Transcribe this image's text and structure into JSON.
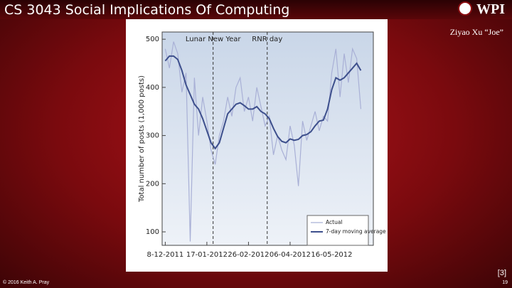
{
  "slide": {
    "title": "CS 3043 Social Implications Of Computing",
    "logo": "WPI",
    "author": "Ziyao Xu “Joe”",
    "reference": "[3]",
    "footer": "© 2016 Keith A. Pray",
    "page_number": "19"
  },
  "chart_data": {
    "type": "line",
    "y_label": "Total number of posts (1,000 posts)",
    "x": [
      "2011-12-08",
      "2011-12-12",
      "2011-12-16",
      "2011-12-20",
      "2011-12-24",
      "2011-12-28",
      "2012-01-01",
      "2012-01-05",
      "2012-01-09",
      "2012-01-13",
      "2012-01-17",
      "2012-01-21",
      "2012-01-25",
      "2012-01-29",
      "2012-02-02",
      "2012-02-06",
      "2012-02-10",
      "2012-02-14",
      "2012-02-18",
      "2012-02-22",
      "2012-02-26",
      "2012-03-01",
      "2012-03-05",
      "2012-03-09",
      "2012-03-13",
      "2012-03-17",
      "2012-03-21",
      "2012-03-25",
      "2012-03-29",
      "2012-04-02",
      "2012-04-06",
      "2012-04-10",
      "2012-04-14",
      "2012-04-18",
      "2012-04-22",
      "2012-04-26",
      "2012-04-30",
      "2012-05-04",
      "2012-05-08",
      "2012-05-12",
      "2012-05-16",
      "2012-05-20",
      "2012-05-24",
      "2012-05-28",
      "2012-06-01",
      "2012-06-05",
      "2012-06-09",
      "2012-06-13"
    ],
    "series": [
      {
        "name": "Actual",
        "color": "#a9b0d6",
        "values": [
          480,
          440,
          495,
          470,
          390,
          430,
          80,
          420,
          300,
          380,
          330,
          270,
          240,
          300,
          330,
          380,
          340,
          400,
          420,
          350,
          380,
          330,
          400,
          360,
          320,
          340,
          260,
          300,
          270,
          250,
          320,
          280,
          195,
          330,
          290,
          320,
          350,
          310,
          340,
          330,
          430,
          480,
          380,
          470,
          410,
          480,
          460,
          355
        ]
      },
      {
        "name": "7-day moving average",
        "color": "#3d4f8c",
        "values": [
          455,
          465,
          465,
          458,
          435,
          405,
          385,
          365,
          355,
          335,
          310,
          285,
          273,
          285,
          315,
          345,
          355,
          365,
          368,
          362,
          355,
          355,
          360,
          350,
          345,
          335,
          315,
          298,
          288,
          285,
          293,
          290,
          292,
          300,
          302,
          308,
          320,
          330,
          332,
          355,
          395,
          420,
          415,
          420,
          430,
          440,
          450,
          435
        ]
      }
    ],
    "xlim": [
      "2011-12-05",
      "2012-06-25"
    ],
    "xticks": [
      {
        "value": "2011-12-08",
        "label": "8-12-2011"
      },
      {
        "value": "2012-01-17",
        "label": "17-01-2012"
      },
      {
        "value": "2012-02-26",
        "label": "26-02-2012"
      },
      {
        "value": "2012-04-06",
        "label": "06-04-2012"
      },
      {
        "value": "2012-05-16",
        "label": "16-05-2012"
      }
    ],
    "ylim": [
      72,
      515
    ],
    "yticks": [
      100,
      200,
      300,
      400,
      500
    ],
    "annotations": [
      {
        "text": "Lunar New Year",
        "x": "2012-01-23"
      },
      {
        "text": "RNR day",
        "x": "2012-03-15"
      }
    ],
    "legend": "lower right"
  }
}
